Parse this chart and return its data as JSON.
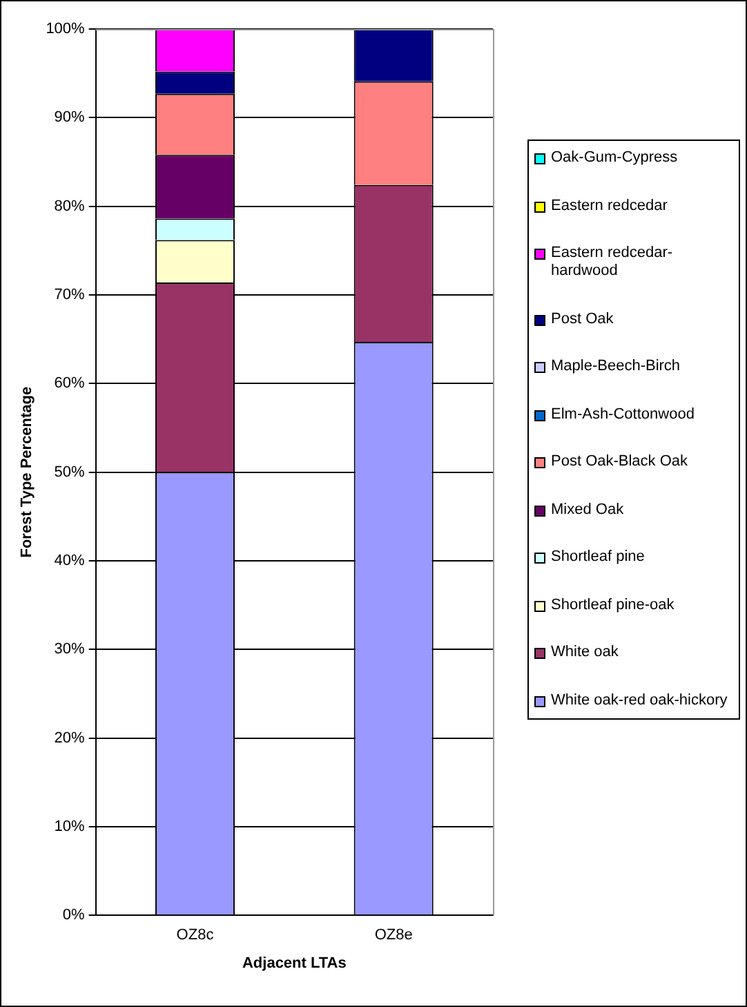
{
  "chart_data": {
    "type": "bar",
    "stacked": true,
    "xlabel": "Adjacent LTAs",
    "ylabel": "Forest Type Percentage",
    "categories": [
      "OZ8c",
      "OZ8e"
    ],
    "series": [
      {
        "name": "White oak-red oak-hickory",
        "color": "#9999ff",
        "values": [
          50.0,
          64.7
        ]
      },
      {
        "name": "White oak",
        "color": "#993366",
        "values": [
          21.4,
          17.7
        ]
      },
      {
        "name": "Shortleaf pine-oak",
        "color": "#ffffcc",
        "values": [
          4.8,
          0
        ]
      },
      {
        "name": "Shortleaf pine",
        "color": "#ccffff",
        "values": [
          2.4,
          0
        ]
      },
      {
        "name": "Mixed Oak",
        "color": "#660066",
        "values": [
          7.2,
          0
        ]
      },
      {
        "name": "Post Oak-Black Oak",
        "color": "#ff8080",
        "values": [
          6.9,
          11.7
        ]
      },
      {
        "name": "Elm-Ash-Cottonwood",
        "color": "#0066cc",
        "values": [
          0,
          0
        ]
      },
      {
        "name": "Maple-Beech-Birch",
        "color": "#ccccff",
        "values": [
          0,
          0
        ]
      },
      {
        "name": "Post Oak",
        "color": "#000080",
        "values": [
          2.5,
          5.9
        ]
      },
      {
        "name": "Eastern redcedar-hardwood",
        "color": "#ff00ff",
        "values": [
          4.8,
          0
        ]
      },
      {
        "name": "Eastern redcedar",
        "color": "#ffff00",
        "values": [
          0,
          0
        ]
      },
      {
        "name": "Oak-Gum-Cypress",
        "color": "#00ffff",
        "values": [
          0,
          0
        ]
      }
    ],
    "ylim": [
      0,
      100
    ],
    "yticks": [
      {
        "value": 0,
        "label": "0%"
      },
      {
        "value": 10,
        "label": "10%"
      },
      {
        "value": 20,
        "label": "20%"
      },
      {
        "value": 30,
        "label": "30%"
      },
      {
        "value": 40,
        "label": "40%"
      },
      {
        "value": 50,
        "label": "50%"
      },
      {
        "value": 60,
        "label": "60%"
      },
      {
        "value": 70,
        "label": "70%"
      },
      {
        "value": 80,
        "label": "80%"
      },
      {
        "value": 90,
        "label": "90%"
      },
      {
        "value": 100,
        "label": "100%"
      }
    ],
    "grid": "y",
    "legend": "right"
  }
}
